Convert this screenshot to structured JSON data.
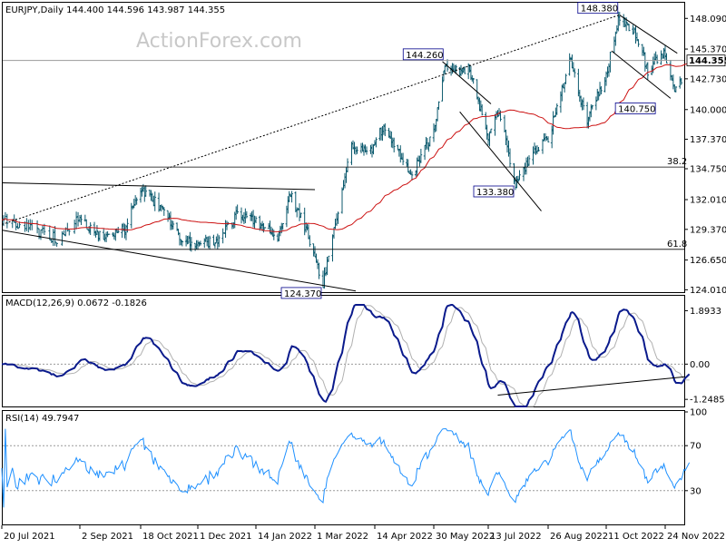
{
  "header": {
    "main_label": "EURJPY,Daily  144.400 144.596 143.987 144.355",
    "macd_label": "MACD(12,26,9) 0.0672 -0.1826",
    "rsi_label": "RSI(14) 49.7947",
    "watermark": "ActionForex.com"
  },
  "colors": {
    "candle": "#0c5a6e",
    "ma": "#cc1111",
    "macd": "#0a1a8c",
    "macd_signal": "#b0b0b0",
    "rsi": "#1e90ff",
    "grid": "#9a9a9a",
    "trendline": "#000000"
  },
  "chart_data": [
    {
      "type": "candlestick",
      "title": "EURJPY,Daily",
      "ylim": [
        123.8,
        149.4
      ],
      "y_ticks": [
        "148.090",
        "145.370",
        "142.730",
        "140.000",
        "137.370",
        "134.750",
        "132.010",
        "129.370",
        "126.650",
        "124.010"
      ],
      "x_ticks": [
        "20 Jul 2021",
        "2 Sep 2021",
        "18 Oct 2021",
        "1 Dec 2021",
        "14 Jan 2022",
        "1 Mar 2022",
        "14 Apr 2022",
        "30 May 2022",
        "13 Jul 2022",
        "26 Aug 2022",
        "11 Oct 2022",
        "24 Nov 2022"
      ],
      "last_price": "144.355",
      "key_levels": [
        {
          "name": "148.380",
          "value": 148.38
        },
        {
          "name": "144.260",
          "value": 144.26
        },
        {
          "name": "140.750",
          "value": 140.75
        },
        {
          "name": "133.380",
          "value": 133.38
        },
        {
          "name": "124.370",
          "value": 124.37
        }
      ],
      "fib_levels": [
        {
          "name": "38.2",
          "value": 134.9
        },
        {
          "name": "61.8",
          "value": 127.6
        }
      ],
      "close_path": [
        {
          "x": "20 Jul 2021",
          "y": 130.2
        },
        {
          "x": "5 Aug 2021",
          "y": 129.5
        },
        {
          "x": "20 Aug 2021",
          "y": 128.5
        },
        {
          "x": "2 Sep 2021",
          "y": 130.3
        },
        {
          "x": "20 Sep 2021",
          "y": 128.5
        },
        {
          "x": "6 Oct 2021",
          "y": 129.5
        },
        {
          "x": "18 Oct 2021",
          "y": 132.9
        },
        {
          "x": "3 Nov 2021",
          "y": 131.3
        },
        {
          "x": "17 Nov 2021",
          "y": 128.5
        },
        {
          "x": "1 Dec 2021",
          "y": 127.9
        },
        {
          "x": "17 Dec 2021",
          "y": 128.6
        },
        {
          "x": "31 Dec 2021",
          "y": 130.7
        },
        {
          "x": "14 Jan 2022",
          "y": 130.0
        },
        {
          "x": "31 Jan 2022",
          "y": 128.9
        },
        {
          "x": "10 Feb 2022",
          "y": 132.4
        },
        {
          "x": "22 Feb 2022",
          "y": 129.4
        },
        {
          "x": "7 Mar 2022",
          "y": 124.4
        },
        {
          "x": "17 Mar 2022",
          "y": 130.5
        },
        {
          "x": "28 Mar 2022",
          "y": 136.8
        },
        {
          "x": "14 Apr 2022",
          "y": 136.6
        },
        {
          "x": "21 Apr 2022",
          "y": 138.8
        },
        {
          "x": "12 May 2022",
          "y": 134.2
        },
        {
          "x": "30 May 2022",
          "y": 137.8
        },
        {
          "x": "8 Jun 2022",
          "y": 143.7
        },
        {
          "x": "28 Jun 2022",
          "y": 143.5
        },
        {
          "x": "13 Jul 2022",
          "y": 137.5
        },
        {
          "x": "21 Jul 2022",
          "y": 140.0
        },
        {
          "x": "2 Aug 2022",
          "y": 133.4
        },
        {
          "x": "15 Aug 2022",
          "y": 136.3
        },
        {
          "x": "26 Aug 2022",
          "y": 137.3
        },
        {
          "x": "12 Sep 2022",
          "y": 144.5
        },
        {
          "x": "26 Sep 2022",
          "y": 139.0
        },
        {
          "x": "11 Oct 2022",
          "y": 143.2
        },
        {
          "x": "21 Oct 2022",
          "y": 148.3
        },
        {
          "x": "3 Nov 2022",
          "y": 146.6
        },
        {
          "x": "11 Nov 2022",
          "y": 143.5
        },
        {
          "x": "24 Nov 2022",
          "y": 145.0
        },
        {
          "x": "1 Dec 2022",
          "y": 141.5
        },
        {
          "x": "12 Dec 2022",
          "y": 144.4
        }
      ]
    },
    {
      "type": "line",
      "title": "MACD(12,26,9)",
      "ylim": [
        -1.5,
        2.1
      ],
      "y_ticks": [
        "1.8933",
        "0.00",
        "-1.2485"
      ],
      "values": {
        "macd": "0.0672",
        "signal": "-0.1826"
      }
    },
    {
      "type": "line",
      "title": "RSI(14)",
      "ylim": [
        0,
        100
      ],
      "y_ticks": [
        "100",
        "70",
        "30",
        "0"
      ],
      "value": "49.7947"
    }
  ]
}
